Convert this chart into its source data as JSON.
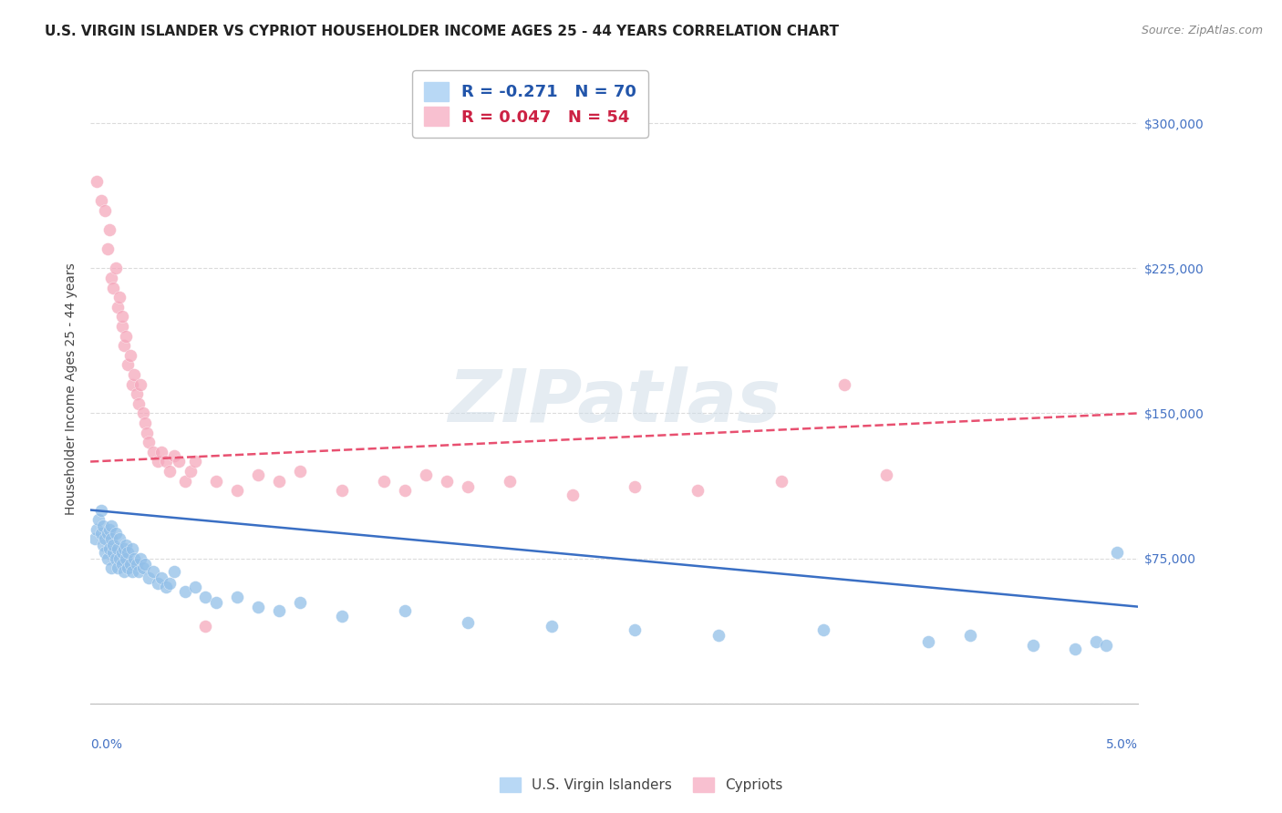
{
  "title": "U.S. VIRGIN ISLANDER VS CYPRIOT HOUSEHOLDER INCOME AGES 25 - 44 YEARS CORRELATION CHART",
  "source": "Source: ZipAtlas.com",
  "ylabel": "Householder Income Ages 25 - 44 years",
  "watermark": "ZIPatlas",
  "xlim": [
    0.0,
    5.0
  ],
  "ylim": [
    0,
    325000
  ],
  "yticks": [
    0,
    75000,
    150000,
    225000,
    300000
  ],
  "ytick_labels": [
    "",
    "$75,000",
    "$150,000",
    "$225,000",
    "$300,000"
  ],
  "blue_color": "#92bfe8",
  "pink_color": "#f5a8bc",
  "blue_legend_color": "#b8d8f5",
  "pink_legend_color": "#f8c0d0",
  "trend_blue_color": "#3a6fc4",
  "trend_pink_color": "#e85070",
  "grid_color": "#cccccc",
  "background_color": "#ffffff",
  "title_fontsize": 11,
  "axis_label_fontsize": 10,
  "tick_fontsize": 10,
  "legend_fontsize": 13,
  "blue_R": -0.271,
  "blue_N": 70,
  "pink_R": 0.047,
  "pink_N": 54,
  "blue_name": "U.S. Virgin Islanders",
  "pink_name": "Cypriots",
  "blue_x": [
    0.02,
    0.03,
    0.04,
    0.05,
    0.05,
    0.06,
    0.06,
    0.07,
    0.07,
    0.08,
    0.08,
    0.09,
    0.09,
    0.1,
    0.1,
    0.1,
    0.11,
    0.11,
    0.12,
    0.12,
    0.13,
    0.13,
    0.14,
    0.14,
    0.15,
    0.15,
    0.16,
    0.16,
    0.17,
    0.17,
    0.18,
    0.18,
    0.19,
    0.2,
    0.2,
    0.21,
    0.22,
    0.23,
    0.24,
    0.25,
    0.26,
    0.28,
    0.3,
    0.32,
    0.34,
    0.36,
    0.38,
    0.4,
    0.45,
    0.5,
    0.55,
    0.6,
    0.7,
    0.8,
    0.9,
    1.0,
    1.2,
    1.5,
    1.8,
    2.2,
    2.6,
    3.0,
    3.5,
    4.0,
    4.2,
    4.5,
    4.7,
    4.8,
    4.85,
    4.9
  ],
  "blue_y": [
    85000,
    90000,
    95000,
    88000,
    100000,
    92000,
    82000,
    78000,
    85000,
    88000,
    75000,
    80000,
    90000,
    70000,
    85000,
    92000,
    78000,
    82000,
    75000,
    88000,
    70000,
    80000,
    75000,
    85000,
    78000,
    72000,
    80000,
    68000,
    75000,
    82000,
    70000,
    78000,
    72000,
    68000,
    80000,
    75000,
    72000,
    68000,
    75000,
    70000,
    72000,
    65000,
    68000,
    62000,
    65000,
    60000,
    62000,
    68000,
    58000,
    60000,
    55000,
    52000,
    55000,
    50000,
    48000,
    52000,
    45000,
    48000,
    42000,
    40000,
    38000,
    35000,
    38000,
    32000,
    35000,
    30000,
    28000,
    32000,
    30000,
    78000
  ],
  "pink_x": [
    0.03,
    0.05,
    0.07,
    0.08,
    0.09,
    0.1,
    0.11,
    0.12,
    0.13,
    0.14,
    0.15,
    0.15,
    0.16,
    0.17,
    0.18,
    0.19,
    0.2,
    0.21,
    0.22,
    0.23,
    0.24,
    0.25,
    0.26,
    0.27,
    0.28,
    0.3,
    0.32,
    0.34,
    0.36,
    0.38,
    0.4,
    0.42,
    0.45,
    0.48,
    0.5,
    0.55,
    0.6,
    0.7,
    0.8,
    0.9,
    1.0,
    1.2,
    1.4,
    1.6,
    1.8,
    2.0,
    2.3,
    2.6,
    2.9,
    3.3,
    3.8,
    1.5,
    1.7,
    3.6
  ],
  "pink_y": [
    270000,
    260000,
    255000,
    235000,
    245000,
    220000,
    215000,
    225000,
    205000,
    210000,
    195000,
    200000,
    185000,
    190000,
    175000,
    180000,
    165000,
    170000,
    160000,
    155000,
    165000,
    150000,
    145000,
    140000,
    135000,
    130000,
    125000,
    130000,
    125000,
    120000,
    128000,
    125000,
    115000,
    120000,
    125000,
    40000,
    115000,
    110000,
    118000,
    115000,
    120000,
    110000,
    115000,
    118000,
    112000,
    115000,
    108000,
    112000,
    110000,
    115000,
    118000,
    110000,
    115000,
    165000
  ]
}
